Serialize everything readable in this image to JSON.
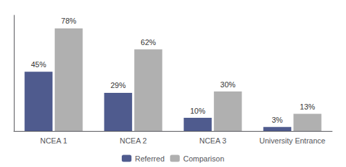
{
  "chart_data": {
    "type": "bar",
    "categories": [
      "NCEA 1",
      "NCEA 2",
      "NCEA 3",
      "University Entrance"
    ],
    "series": [
      {
        "name": "Referred",
        "color": "#4F5B8E",
        "values": [
          45,
          29,
          10,
          3
        ],
        "value_labels": [
          "45%",
          "29%",
          "10%",
          "3%"
        ]
      },
      {
        "name": "Comparison",
        "color": "#B0B0B0",
        "values": [
          78,
          62,
          30,
          13
        ],
        "value_labels": [
          "78%",
          "62%",
          "30%",
          "13%"
        ]
      }
    ],
    "ylim": [
      0,
      88
    ],
    "grid": false,
    "legend": "bottom",
    "data_labels": true,
    "tick_labels": "x"
  }
}
